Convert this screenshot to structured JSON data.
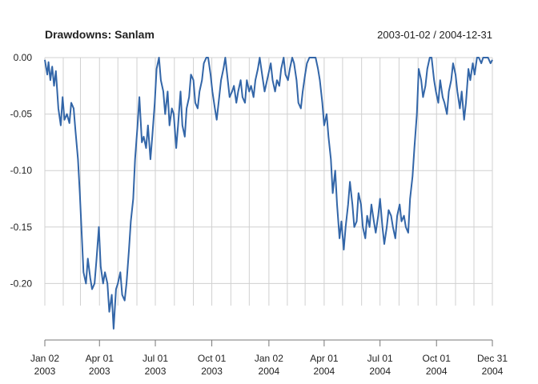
{
  "chart_data": {
    "type": "line",
    "title": "Drawdowns: Sanlam",
    "date_range": "2003-01-02 / 2004-12-31",
    "ylim": [
      -0.25,
      0.0
    ],
    "y_ticks": [
      {
        "value": 0.0,
        "label": "0.00"
      },
      {
        "value": -0.05,
        "label": "-0.05"
      },
      {
        "value": -0.1,
        "label": "-0.10"
      },
      {
        "value": -0.15,
        "label": "-0.15"
      },
      {
        "value": -0.2,
        "label": "-0.20"
      }
    ],
    "x_ticks": [
      {
        "date": "2003-01-02",
        "line1": "Jan 02",
        "line2": "2003"
      },
      {
        "date": "2003-04-01",
        "line1": "Apr 01",
        "line2": "2003"
      },
      {
        "date": "2003-07-01",
        "line1": "Jul 01",
        "line2": "2003"
      },
      {
        "date": "2003-10-01",
        "line1": "Oct 01",
        "line2": "2003"
      },
      {
        "date": "2004-01-02",
        "line1": "Jan 02",
        "line2": "2004"
      },
      {
        "date": "2004-04-01",
        "line1": "Apr 01",
        "line2": "2004"
      },
      {
        "date": "2004-07-01",
        "line1": "Jul 01",
        "line2": "2004"
      },
      {
        "date": "2004-10-01",
        "line1": "Oct 01",
        "line2": "2004"
      },
      {
        "date": "2004-12-31",
        "line1": "Dec 31",
        "line2": "2004"
      }
    ],
    "month_gridlines": [
      "2003-02-01",
      "2003-03-01",
      "2003-05-01",
      "2003-06-01",
      "2003-08-01",
      "2003-09-01",
      "2003-11-01",
      "2003-12-01",
      "2004-02-01",
      "2004-03-01",
      "2004-05-01",
      "2004-06-01",
      "2004-08-01",
      "2004-09-01",
      "2004-11-01",
      "2004-12-01"
    ],
    "series": [
      {
        "color": "#3366a8",
        "points": [
          [
            "2003-01-02",
            -0.002
          ],
          [
            "2003-01-06",
            -0.015
          ],
          [
            "2003-01-08",
            -0.004
          ],
          [
            "2003-01-11",
            -0.02
          ],
          [
            "2003-01-14",
            -0.008
          ],
          [
            "2003-01-17",
            -0.025
          ],
          [
            "2003-01-20",
            -0.012
          ],
          [
            "2003-01-24",
            -0.045
          ],
          [
            "2003-01-28",
            -0.06
          ],
          [
            "2003-01-31",
            -0.035
          ],
          [
            "2003-02-03",
            -0.055
          ],
          [
            "2003-02-07",
            -0.05
          ],
          [
            "2003-02-11",
            -0.058
          ],
          [
            "2003-02-14",
            -0.04
          ],
          [
            "2003-02-18",
            -0.045
          ],
          [
            "2003-02-21",
            -0.065
          ],
          [
            "2003-02-25",
            -0.09
          ],
          [
            "2003-02-28",
            -0.12
          ],
          [
            "2003-03-03",
            -0.155
          ],
          [
            "2003-03-06",
            -0.19
          ],
          [
            "2003-03-10",
            -0.2
          ],
          [
            "2003-03-13",
            -0.178
          ],
          [
            "2003-03-17",
            -0.195
          ],
          [
            "2003-03-20",
            -0.205
          ],
          [
            "2003-03-24",
            -0.2
          ],
          [
            "2003-03-27",
            -0.18
          ],
          [
            "2003-03-31",
            -0.15
          ],
          [
            "2003-04-03",
            -0.185
          ],
          [
            "2003-04-07",
            -0.2
          ],
          [
            "2003-04-10",
            -0.19
          ],
          [
            "2003-04-14",
            -0.2
          ],
          [
            "2003-04-17",
            -0.225
          ],
          [
            "2003-04-21",
            -0.21
          ],
          [
            "2003-04-24",
            -0.24
          ],
          [
            "2003-04-28",
            -0.205
          ],
          [
            "2003-05-01",
            -0.2
          ],
          [
            "2003-05-05",
            -0.19
          ],
          [
            "2003-05-08",
            -0.21
          ],
          [
            "2003-05-12",
            -0.215
          ],
          [
            "2003-05-15",
            -0.2
          ],
          [
            "2003-05-19",
            -0.17
          ],
          [
            "2003-05-22",
            -0.145
          ],
          [
            "2003-05-26",
            -0.125
          ],
          [
            "2003-05-29",
            -0.09
          ],
          [
            "2003-06-02",
            -0.06
          ],
          [
            "2003-06-05",
            -0.035
          ],
          [
            "2003-06-09",
            -0.075
          ],
          [
            "2003-06-12",
            -0.07
          ],
          [
            "2003-06-16",
            -0.08
          ],
          [
            "2003-06-19",
            -0.06
          ],
          [
            "2003-06-23",
            -0.09
          ],
          [
            "2003-06-26",
            -0.07
          ],
          [
            "2003-06-30",
            -0.04
          ],
          [
            "2003-07-03",
            -0.01
          ],
          [
            "2003-07-07",
            0.0
          ],
          [
            "2003-07-10",
            -0.02
          ],
          [
            "2003-07-14",
            -0.03
          ],
          [
            "2003-07-17",
            -0.05
          ],
          [
            "2003-07-21",
            -0.03
          ],
          [
            "2003-07-24",
            -0.06
          ],
          [
            "2003-07-28",
            -0.045
          ],
          [
            "2003-07-31",
            -0.05
          ],
          [
            "2003-08-04",
            -0.08
          ],
          [
            "2003-08-07",
            -0.06
          ],
          [
            "2003-08-11",
            -0.03
          ],
          [
            "2003-08-14",
            -0.06
          ],
          [
            "2003-08-18",
            -0.07
          ],
          [
            "2003-08-21",
            -0.045
          ],
          [
            "2003-08-25",
            -0.035
          ],
          [
            "2003-08-28",
            -0.015
          ],
          [
            "2003-09-01",
            -0.02
          ],
          [
            "2003-09-04",
            -0.04
          ],
          [
            "2003-09-08",
            -0.045
          ],
          [
            "2003-09-11",
            -0.03
          ],
          [
            "2003-09-15",
            -0.02
          ],
          [
            "2003-09-18",
            -0.005
          ],
          [
            "2003-09-22",
            0.0
          ],
          [
            "2003-09-25",
            0.0
          ],
          [
            "2003-09-29",
            -0.015
          ],
          [
            "2003-10-02",
            -0.03
          ],
          [
            "2003-10-06",
            -0.045
          ],
          [
            "2003-10-09",
            -0.055
          ],
          [
            "2003-10-13",
            -0.035
          ],
          [
            "2003-10-16",
            -0.02
          ],
          [
            "2003-10-20",
            -0.01
          ],
          [
            "2003-10-23",
            0.0
          ],
          [
            "2003-10-27",
            -0.02
          ],
          [
            "2003-10-30",
            -0.035
          ],
          [
            "2003-11-03",
            -0.03
          ],
          [
            "2003-11-06",
            -0.025
          ],
          [
            "2003-11-10",
            -0.04
          ],
          [
            "2003-11-13",
            -0.03
          ],
          [
            "2003-11-17",
            -0.02
          ],
          [
            "2003-11-20",
            -0.035
          ],
          [
            "2003-11-24",
            -0.04
          ],
          [
            "2003-11-27",
            -0.02
          ],
          [
            "2003-12-01",
            -0.03
          ],
          [
            "2003-12-04",
            -0.025
          ],
          [
            "2003-12-08",
            -0.035
          ],
          [
            "2003-12-11",
            -0.02
          ],
          [
            "2003-12-15",
            -0.01
          ],
          [
            "2003-12-18",
            0.0
          ],
          [
            "2003-12-22",
            -0.015
          ],
          [
            "2003-12-26",
            -0.03
          ],
          [
            "2003-12-30",
            -0.02
          ],
          [
            "2004-01-05",
            -0.005
          ],
          [
            "2004-01-08",
            -0.02
          ],
          [
            "2004-01-12",
            -0.03
          ],
          [
            "2004-01-15",
            -0.02
          ],
          [
            "2004-01-19",
            -0.025
          ],
          [
            "2004-01-22",
            -0.01
          ],
          [
            "2004-01-26",
            0.0
          ],
          [
            "2004-01-29",
            -0.015
          ],
          [
            "2004-02-02",
            -0.02
          ],
          [
            "2004-02-05",
            -0.01
          ],
          [
            "2004-02-09",
            0.0
          ],
          [
            "2004-02-12",
            -0.005
          ],
          [
            "2004-02-16",
            -0.02
          ],
          [
            "2004-02-19",
            -0.04
          ],
          [
            "2004-02-23",
            -0.045
          ],
          [
            "2004-02-26",
            -0.03
          ],
          [
            "2004-03-01",
            -0.015
          ],
          [
            "2004-03-04",
            -0.005
          ],
          [
            "2004-03-08",
            0.0
          ],
          [
            "2004-03-11",
            0.0
          ],
          [
            "2004-03-15",
            0.0
          ],
          [
            "2004-03-18",
            0.0
          ],
          [
            "2004-03-22",
            -0.01
          ],
          [
            "2004-03-25",
            -0.02
          ],
          [
            "2004-03-29",
            -0.04
          ],
          [
            "2004-04-01",
            -0.06
          ],
          [
            "2004-04-05",
            -0.05
          ],
          [
            "2004-04-08",
            -0.07
          ],
          [
            "2004-04-12",
            -0.09
          ],
          [
            "2004-04-15",
            -0.12
          ],
          [
            "2004-04-19",
            -0.1
          ],
          [
            "2004-04-22",
            -0.13
          ],
          [
            "2004-04-26",
            -0.16
          ],
          [
            "2004-04-29",
            -0.145
          ],
          [
            "2004-05-03",
            -0.17
          ],
          [
            "2004-05-06",
            -0.15
          ],
          [
            "2004-05-10",
            -0.13
          ],
          [
            "2004-05-13",
            -0.11
          ],
          [
            "2004-05-17",
            -0.13
          ],
          [
            "2004-05-20",
            -0.15
          ],
          [
            "2004-05-24",
            -0.145
          ],
          [
            "2004-05-27",
            -0.12
          ],
          [
            "2004-05-31",
            -0.13
          ],
          [
            "2004-06-03",
            -0.15
          ],
          [
            "2004-06-07",
            -0.16
          ],
          [
            "2004-06-10",
            -0.14
          ],
          [
            "2004-06-14",
            -0.15
          ],
          [
            "2004-06-17",
            -0.13
          ],
          [
            "2004-06-21",
            -0.145
          ],
          [
            "2004-06-24",
            -0.155
          ],
          [
            "2004-06-28",
            -0.14
          ],
          [
            "2004-07-01",
            -0.125
          ],
          [
            "2004-07-05",
            -0.15
          ],
          [
            "2004-07-08",
            -0.165
          ],
          [
            "2004-07-12",
            -0.15
          ],
          [
            "2004-07-15",
            -0.135
          ],
          [
            "2004-07-19",
            -0.14
          ],
          [
            "2004-07-22",
            -0.15
          ],
          [
            "2004-07-26",
            -0.16
          ],
          [
            "2004-07-29",
            -0.14
          ],
          [
            "2004-08-02",
            -0.13
          ],
          [
            "2004-08-05",
            -0.145
          ],
          [
            "2004-08-09",
            -0.14
          ],
          [
            "2004-08-12",
            -0.15
          ],
          [
            "2004-08-16",
            -0.155
          ],
          [
            "2004-08-19",
            -0.125
          ],
          [
            "2004-08-23",
            -0.105
          ],
          [
            "2004-08-26",
            -0.08
          ],
          [
            "2004-08-30",
            -0.05
          ],
          [
            "2004-09-02",
            -0.01
          ],
          [
            "2004-09-06",
            -0.02
          ],
          [
            "2004-09-09",
            -0.035
          ],
          [
            "2004-09-13",
            -0.025
          ],
          [
            "2004-09-16",
            -0.01
          ],
          [
            "2004-09-20",
            0.0
          ],
          [
            "2004-09-23",
            0.0
          ],
          [
            "2004-09-27",
            -0.02
          ],
          [
            "2004-09-30",
            -0.03
          ],
          [
            "2004-10-04",
            -0.04
          ],
          [
            "2004-10-07",
            -0.02
          ],
          [
            "2004-10-11",
            -0.035
          ],
          [
            "2004-10-14",
            -0.04
          ],
          [
            "2004-10-18",
            -0.05
          ],
          [
            "2004-10-21",
            -0.03
          ],
          [
            "2004-10-25",
            -0.02
          ],
          [
            "2004-10-28",
            -0.005
          ],
          [
            "2004-11-01",
            -0.015
          ],
          [
            "2004-11-04",
            -0.03
          ],
          [
            "2004-11-08",
            -0.045
          ],
          [
            "2004-11-11",
            -0.03
          ],
          [
            "2004-11-15",
            -0.055
          ],
          [
            "2004-11-18",
            -0.04
          ],
          [
            "2004-11-22",
            -0.01
          ],
          [
            "2004-11-25",
            -0.02
          ],
          [
            "2004-11-29",
            -0.005
          ],
          [
            "2004-12-02",
            -0.015
          ],
          [
            "2004-12-06",
            0.0
          ],
          [
            "2004-12-09",
            0.0
          ],
          [
            "2004-12-13",
            -0.005
          ],
          [
            "2004-12-16",
            0.0
          ],
          [
            "2004-12-20",
            0.0
          ],
          [
            "2004-12-24",
            0.0
          ],
          [
            "2004-12-28",
            -0.005
          ],
          [
            "2004-12-31",
            -0.002
          ]
        ]
      }
    ]
  }
}
